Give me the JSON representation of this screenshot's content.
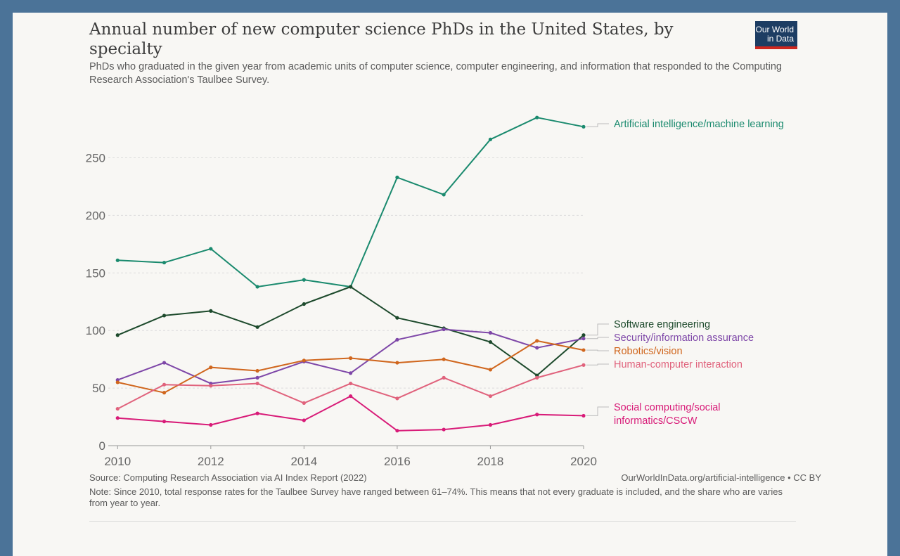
{
  "title": "Annual number of new computer science PhDs in the United States, by specialty",
  "subtitle": "PhDs who graduated in the given year from academic units of computer science, computer engineering, and information that responded to the Computing Research Association's Taulbee Survey.",
  "logo": {
    "line1": "Our World",
    "line2": "in Data"
  },
  "footer": {
    "source": "Source: Computing Research Association via AI Index Report (2022)",
    "url": "OurWorldInData.org/artificial-intelligence • CC BY",
    "note": "Note: Since 2010, total response rates for the Taulbee Survey have ranged between 61–74%. This means that not every graduate is included, and the share who are varies from year to year."
  },
  "chart_data": {
    "type": "line",
    "x": [
      2010,
      2011,
      2012,
      2013,
      2014,
      2015,
      2016,
      2017,
      2018,
      2019,
      2020
    ],
    "xlim": [
      2009.8,
      2020
    ],
    "ylim": [
      0,
      290
    ],
    "xticks": [
      "2010",
      "2012",
      "2014",
      "2016",
      "2018",
      "2020"
    ],
    "yticks": [
      "0",
      "50",
      "100",
      "150",
      "200",
      "250"
    ],
    "grid": "horizontal dashed",
    "legend": "direct labels at right",
    "series": [
      {
        "name": "Artificial intelligence/machine learning",
        "color": "#1a8a6e",
        "values": [
          161,
          159,
          171,
          138,
          144,
          138,
          233,
          218,
          266,
          285,
          277
        ]
      },
      {
        "name": "Software engineering",
        "color": "#1d4a2c",
        "values": [
          96,
          113,
          117,
          103,
          123,
          138,
          111,
          102,
          90,
          61,
          96
        ]
      },
      {
        "name": "Security/information assurance",
        "color": "#7e47a8",
        "values": [
          57,
          72,
          54,
          59,
          73,
          63,
          92,
          101,
          98,
          85,
          93
        ]
      },
      {
        "name": "Robotics/vision",
        "color": "#d0661d",
        "values": [
          55,
          46,
          68,
          65,
          74,
          76,
          72,
          75,
          66,
          91,
          83
        ]
      },
      {
        "name": "Human-computer interaction",
        "color": "#e0627c",
        "values": [
          32,
          53,
          52,
          54,
          37,
          54,
          41,
          59,
          43,
          59,
          70
        ]
      },
      {
        "name": "Social computing/social informatics/CSCW",
        "color": "#d81b78",
        "values": [
          24,
          21,
          18,
          28,
          22,
          43,
          13,
          14,
          18,
          27,
          26
        ]
      }
    ]
  }
}
